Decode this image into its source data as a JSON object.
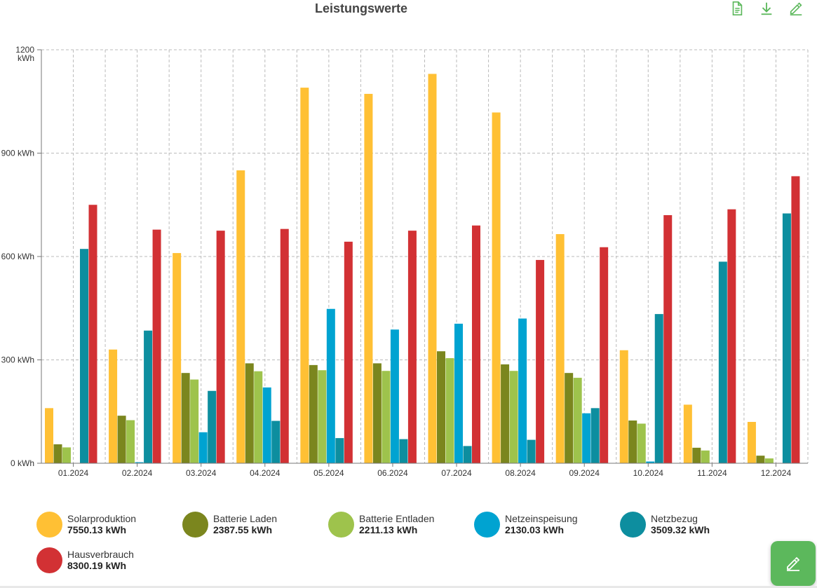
{
  "header": {
    "title": "Leistungswerte"
  },
  "toolbar": {
    "icons": [
      "document-icon",
      "download-icon",
      "edit-icon"
    ]
  },
  "colors": {
    "solar": "#FFC034",
    "battery_charge": "#7B861E",
    "battery_discharge": "#9EC34C",
    "grid_feed": "#00A3D1",
    "grid_draw": "#0D8E9F",
    "house": "#D23134",
    "fab": "#5CB85C"
  },
  "chart_data": {
    "type": "bar",
    "title": "Leistungswerte",
    "categories": [
      "01.2024",
      "02.2024",
      "03.2024",
      "04.2024",
      "05.2024",
      "06.2024",
      "07.2024",
      "08.2024",
      "09.2024",
      "10.2024",
      "11.2024",
      "12.2024"
    ],
    "ylim": [
      0,
      1200
    ],
    "yticks": [
      {
        "value": 0,
        "label": "0 kWh"
      },
      {
        "value": 300,
        "label": "300 kWh"
      },
      {
        "value": 600,
        "label": "600 kWh"
      },
      {
        "value": 900,
        "label": "900 kWh"
      },
      {
        "value": 1200,
        "label": "1200 kWh"
      }
    ],
    "grid": true,
    "series": [
      {
        "name": "Solarproduktion",
        "color": "#FFC034",
        "values": [
          160,
          330,
          610,
          850,
          1090,
          1072,
          1130,
          1018,
          665,
          328,
          170,
          120
        ]
      },
      {
        "name": "Batterie Laden",
        "color": "#7B861E",
        "values": [
          55,
          138,
          262,
          290,
          285,
          290,
          325,
          287,
          262,
          124,
          45,
          22
        ]
      },
      {
        "name": "Batterie Entladen",
        "color": "#9EC34C",
        "values": [
          46,
          125,
          243,
          267,
          270,
          268,
          305,
          268,
          248,
          115,
          37,
          14
        ]
      },
      {
        "name": "Netzeinspeisung",
        "color": "#00A3D1",
        "values": [
          0,
          3,
          90,
          220,
          448,
          388,
          405,
          420,
          145,
          5,
          0,
          0
        ]
      },
      {
        "name": "Netzbezug",
        "color": "#0D8E9F",
        "values": [
          622,
          385,
          210,
          123,
          73,
          70,
          50,
          68,
          160,
          433,
          585,
          725
        ]
      },
      {
        "name": "Hausverbrauch",
        "color": "#D23134",
        "values": [
          750,
          678,
          675,
          680,
          643,
          675,
          690,
          590,
          627,
          720,
          737,
          833
        ]
      }
    ]
  },
  "legend": [
    {
      "label": "Solarproduktion",
      "value": "7550.13 kWh",
      "color": "#FFC034"
    },
    {
      "label": "Batterie Laden",
      "value": "2387.55 kWh",
      "color": "#7B861E"
    },
    {
      "label": "Batterie Entladen",
      "value": "2211.13 kWh",
      "color": "#9EC34C"
    },
    {
      "label": "Netzeinspeisung",
      "value": "2130.03 kWh",
      "color": "#00A3D1"
    },
    {
      "label": "Netzbezug",
      "value": "3509.32 kWh",
      "color": "#0D8E9F"
    },
    {
      "label": "Hausverbrauch",
      "value": "8300.19 kWh",
      "color": "#D23134"
    }
  ]
}
